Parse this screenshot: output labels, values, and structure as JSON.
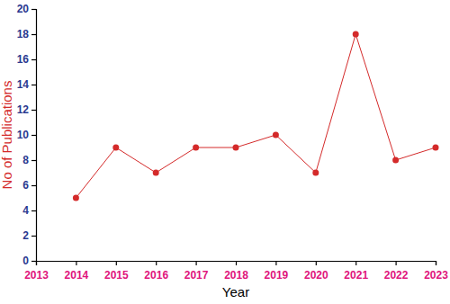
{
  "chart_data": {
    "type": "line",
    "x_label": "Year",
    "y_label": "No of Publications",
    "x": [
      2014,
      2015,
      2016,
      2017,
      2018,
      2019,
      2020,
      2021,
      2022,
      2023
    ],
    "values": [
      5,
      9,
      7,
      9,
      9,
      10,
      7,
      18,
      8,
      9
    ],
    "color": "#d42a2a",
    "marker": "circle",
    "xlim": [
      2013,
      2023
    ],
    "xticks": [
      2013,
      2014,
      2015,
      2016,
      2017,
      2018,
      2019,
      2020,
      2021,
      2022,
      2023
    ],
    "ylim": [
      0,
      20
    ],
    "yticks": [
      0,
      2,
      4,
      6,
      8,
      10,
      12,
      14,
      16,
      18,
      20
    ],
    "grid": false
  }
}
